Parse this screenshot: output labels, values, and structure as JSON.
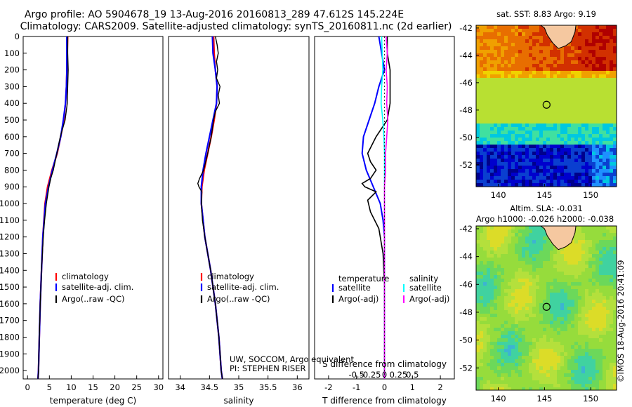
{
  "header": {
    "title_line1": "Argo profile: AO 5904678_19 13-Aug-2016 20160813_289 47.612S 145.224E",
    "title_line2": "Climatology: CARS2009. Satellite-adjusted climatology: synTS_20160811.nc (2d earlier)"
  },
  "depth_axis": {
    "ticks": [
      "0",
      "100",
      "200",
      "300",
      "400",
      "500",
      "600",
      "700",
      "800",
      "900",
      "1000",
      "1100",
      "1200",
      "1300",
      "1400",
      "1500",
      "1600",
      "1700",
      "1800",
      "1900",
      "2000"
    ],
    "max": 2050
  },
  "colors": {
    "climatology": "#ff0000",
    "satellite": "#0000ff",
    "argo": "#000000",
    "satellite_s": "#00ffff",
    "argo_s": "#ff00ff"
  },
  "chart_data": [
    {
      "type": "line",
      "xlabel": "temperature (deg C)",
      "xlim": [
        -1,
        31
      ],
      "xticks": [
        "0",
        "5",
        "10",
        "15",
        "20",
        "25",
        "30"
      ],
      "ylim": [
        0,
        2050
      ],
      "legend": [
        "climatology",
        "satellite-adj. clim.",
        "Argo(..raw -QC)"
      ],
      "series": [
        {
          "name": "climatology",
          "depth": [
            0,
            100,
            200,
            300,
            400,
            500,
            600,
            700,
            800,
            900,
            1000,
            1200,
            1400,
            1600,
            1800,
            2000,
            2050
          ],
          "values": [
            9.2,
            9.1,
            9.0,
            8.9,
            8.7,
            8.3,
            7.6,
            6.8,
            5.6,
            4.6,
            4.0,
            3.5,
            3.2,
            2.9,
            2.7,
            2.5,
            2.4
          ]
        },
        {
          "name": "satellite-adj. clim.",
          "depth": [
            0,
            100,
            200,
            300,
            400,
            500,
            600,
            700,
            800,
            900,
            1000,
            1200,
            1400,
            1600,
            1800,
            2000,
            2050
          ],
          "values": [
            9.0,
            9.0,
            9.0,
            8.9,
            8.7,
            8.2,
            7.6,
            6.7,
            5.7,
            4.8,
            4.1,
            3.5,
            3.2,
            2.9,
            2.7,
            2.5,
            2.4
          ]
        },
        {
          "name": "Argo(..raw -QC)",
          "depth": [
            0,
            100,
            200,
            300,
            400,
            500,
            600,
            700,
            800,
            850,
            900,
            1000,
            1100,
            1200,
            1400,
            1600,
            1800,
            2000,
            2050
          ],
          "values": [
            9.2,
            9.2,
            9.3,
            9.2,
            9.1,
            8.6,
            7.5,
            6.7,
            5.9,
            5.3,
            4.9,
            4.3,
            3.9,
            3.6,
            3.2,
            2.9,
            2.7,
            2.5,
            2.4
          ]
        }
      ]
    },
    {
      "type": "line",
      "xlabel": "salinity",
      "xlim": [
        33.8,
        36.2
      ],
      "xticks": [
        "34",
        "34.5",
        "35",
        "35.5",
        "36"
      ],
      "ylim": [
        0,
        2050
      ],
      "legend": [
        "climatology",
        "satellite-adj. clim.",
        "Argo(..raw -QC)"
      ],
      "annotation": [
        "UW, SOCCOM, Argo equivalent",
        "PI: STEPHEN RISER"
      ],
      "series": [
        {
          "name": "climatology",
          "depth": [
            0,
            100,
            200,
            300,
            400,
            500,
            600,
            700,
            800,
            900,
            1000,
            1200,
            1400,
            1600,
            1800,
            2000,
            2050
          ],
          "values": [
            34.57,
            34.58,
            34.6,
            34.63,
            34.62,
            34.58,
            34.53,
            34.47,
            34.41,
            34.37,
            34.36,
            34.42,
            34.52,
            34.6,
            34.66,
            34.7,
            34.72
          ]
        },
        {
          "name": "satellite-adj. clim.",
          "depth": [
            0,
            100,
            200,
            300,
            400,
            500,
            600,
            700,
            800,
            900,
            1000,
            1200,
            1400,
            1600,
            1800,
            2000,
            2050
          ],
          "values": [
            34.55,
            34.56,
            34.6,
            34.63,
            34.62,
            34.56,
            34.5,
            34.44,
            34.39,
            34.36,
            34.36,
            34.42,
            34.52,
            34.6,
            34.66,
            34.7,
            34.72
          ]
        },
        {
          "name": "Argo(..raw -QC)",
          "depth": [
            0,
            50,
            100,
            150,
            200,
            250,
            300,
            350,
            400,
            450,
            500,
            600,
            700,
            800,
            850,
            880,
            900,
            930,
            1000,
            1100,
            1200,
            1400,
            1600,
            1800,
            2000,
            2050
          ],
          "values": [
            34.6,
            34.63,
            34.65,
            34.62,
            34.64,
            34.62,
            34.68,
            34.65,
            34.67,
            34.6,
            34.57,
            34.53,
            34.47,
            34.4,
            34.33,
            34.3,
            34.32,
            34.37,
            34.36,
            34.38,
            34.42,
            34.52,
            34.6,
            34.66,
            34.7,
            34.72
          ]
        }
      ]
    },
    {
      "type": "line",
      "xlabel": "T difference from climatology",
      "xlabel_top": "S difference from climatology",
      "xlim": [
        -2.5,
        2.5
      ],
      "xticks": [
        "-2",
        "-1",
        "0",
        "1",
        "2"
      ],
      "sticks": [
        "-0.5",
        "-0.25",
        "0",
        "0.25",
        "0.5"
      ],
      "ylim": [
        0,
        2050
      ],
      "legend_titles": [
        "temperature",
        "salinity"
      ],
      "legend": [
        "satellite",
        "Argo(-adj)",
        "satellite",
        "Argo(-adj)"
      ],
      "series": [
        {
          "name": "satellite",
          "depth": [
            0,
            100,
            200,
            300,
            400,
            500,
            600,
            700,
            800,
            900,
            1000,
            1100,
            1200,
            1400,
            1600,
            1800,
            2000,
            2050
          ],
          "values": [
            -0.2,
            -0.1,
            0,
            -0.2,
            -0.35,
            -0.55,
            -0.75,
            -0.8,
            -0.65,
            -0.4,
            -0.15,
            -0.05,
            0,
            0,
            0,
            0,
            0,
            0
          ]
        },
        {
          "name": "Argo(-adj)",
          "depth": [
            0,
            100,
            200,
            300,
            400,
            500,
            600,
            700,
            750,
            800,
            850,
            880,
            900,
            930,
            980,
            1050,
            1150,
            1300,
            1500,
            1700,
            2000,
            2050
          ],
          "values": [
            0.1,
            0.1,
            0.2,
            0.2,
            0.2,
            0.1,
            -0.3,
            -0.6,
            -0.5,
            -0.3,
            -0.5,
            -0.8,
            -0.7,
            -0.3,
            -0.6,
            -0.5,
            -0.2,
            -0.05,
            0,
            0,
            0,
            0
          ]
        },
        {
          "name": "satellite",
          "depth": [
            0,
            100,
            200,
            300,
            400,
            500,
            600,
            700,
            800,
            900,
            1000,
            1200,
            1400,
            1600,
            1800,
            2000,
            2050
          ],
          "values": [
            -0.05,
            -0.04,
            -0.03,
            -0.05,
            -0.06,
            -0.03,
            -0.01,
            0,
            0,
            0,
            0,
            0,
            0,
            0,
            0,
            0,
            0
          ]
        },
        {
          "name": "Argo(-adj)",
          "depth": [
            0,
            100,
            200,
            300,
            400,
            500,
            600,
            700,
            800,
            900,
            1000,
            1200,
            1400,
            1600,
            1800,
            2000,
            2050
          ],
          "values": [
            0.03,
            0.05,
            0.03,
            0.05,
            0.04,
            0.06,
            0.04,
            0.02,
            0.02,
            0,
            0,
            0,
            0,
            0,
            0,
            0,
            0
          ]
        }
      ]
    },
    {
      "type": "heatmap",
      "title": "sat. SST: 8.83 Argo: 9.19",
      "xticks": [
        "140",
        "145",
        "150"
      ],
      "yticks": [
        "-42",
        "-44",
        "-46",
        "-48",
        "-50",
        "-52"
      ],
      "xlim": [
        137.6,
        152.8
      ],
      "ylim": [
        -53.6,
        -41.8
      ],
      "marker": {
        "lon": 145.224,
        "lat": -47.612
      }
    },
    {
      "type": "heatmap",
      "title_line1": "Altim. SLA: -0.031",
      "title_line2": "Argo h1000: -0.026 h2000: -0.038",
      "xticks": [
        "140",
        "145",
        "150"
      ],
      "yticks": [
        "-42",
        "-44",
        "-46",
        "-48",
        "-50",
        "-52"
      ],
      "xlim": [
        137.6,
        152.8
      ],
      "ylim": [
        -53.6,
        -41.8
      ],
      "marker": {
        "lon": 145.224,
        "lat": -47.612
      }
    }
  ],
  "watermark": "©IMOS 18-Aug-2016 20:41:09"
}
